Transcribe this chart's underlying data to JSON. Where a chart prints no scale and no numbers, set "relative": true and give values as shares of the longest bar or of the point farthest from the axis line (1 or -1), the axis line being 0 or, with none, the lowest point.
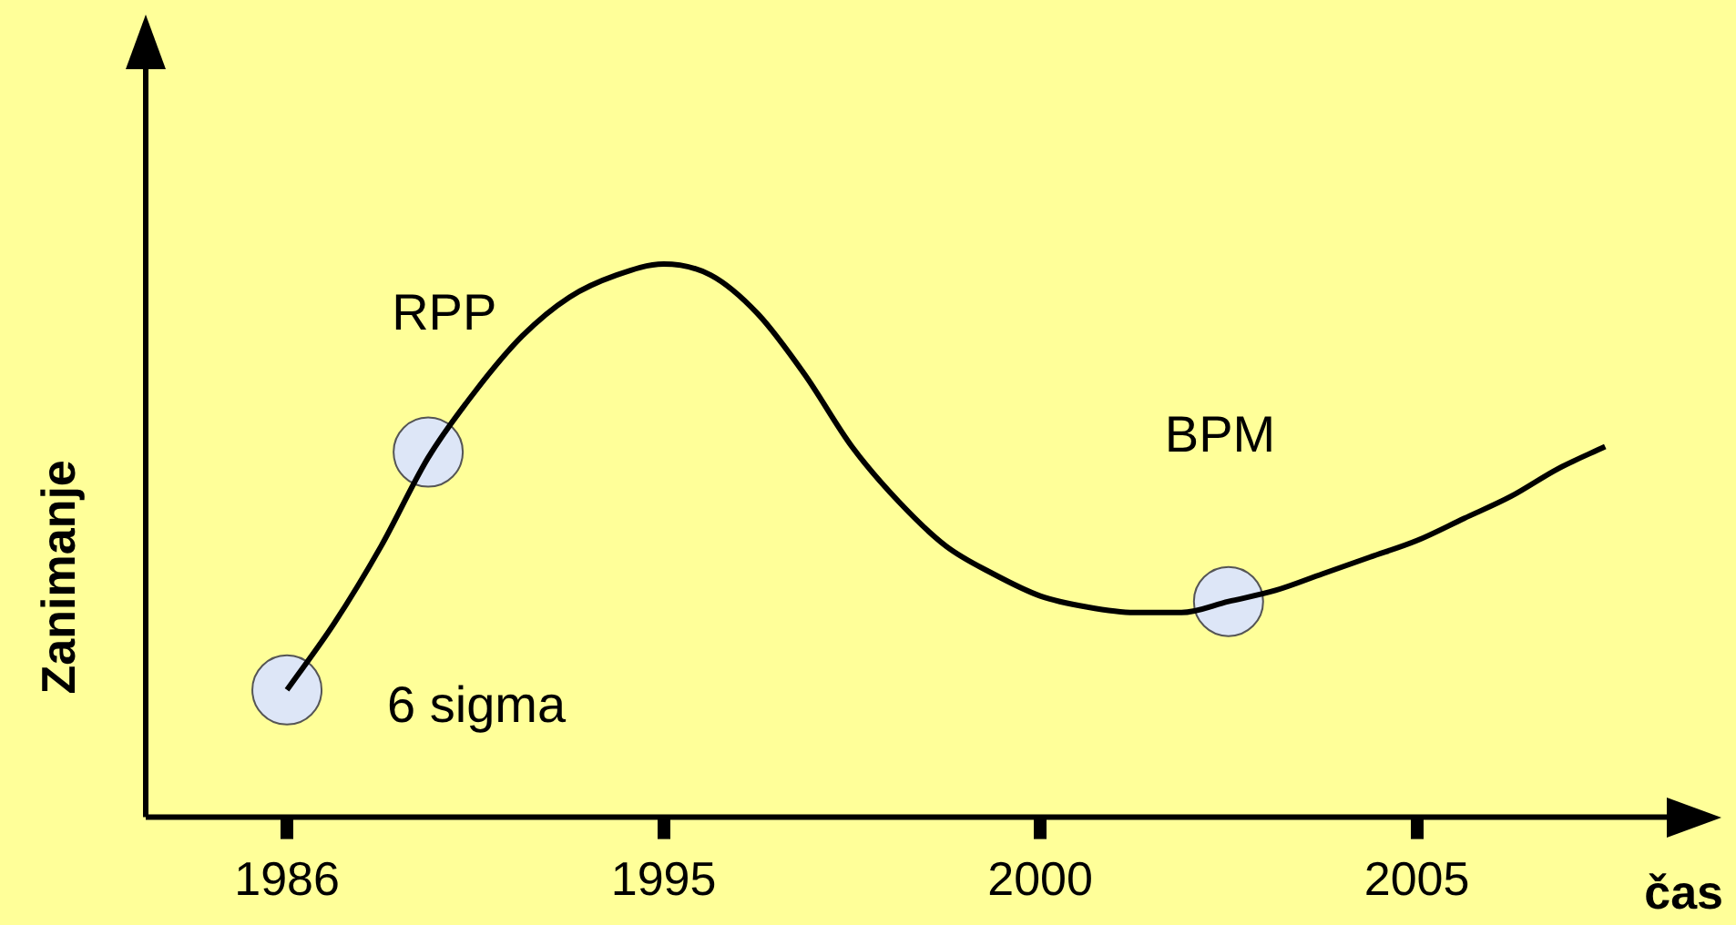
{
  "chart_data": {
    "type": "line",
    "relative": true,
    "xlabel": "čas",
    "ylabel": "Zanimanje",
    "categories": [
      null,
      null,
      null,
      "1986",
      null,
      null,
      null,
      null,
      null,
      null,
      null,
      "1995",
      null,
      null,
      null,
      null,
      null,
      null,
      null,
      "2000",
      null,
      null,
      null,
      null,
      null,
      null,
      null,
      "2005",
      null,
      null,
      null,
      null,
      null
    ],
    "series": [
      {
        "type": "line",
        "color": "#000000",
        "marker": "none",
        "values": [
          null,
          null,
          null,
          0.23,
          0.35,
          0.49,
          0.65,
          0.77,
          0.87,
          0.94,
          0.98,
          1.0,
          0.98,
          0.91,
          0.8,
          0.67,
          0.57,
          0.49,
          0.44,
          0.4,
          0.38,
          0.37,
          0.37,
          0.39,
          0.41,
          0.44,
          0.47,
          0.5,
          0.54,
          0.58,
          0.63,
          0.67,
          null
        ]
      },
      {
        "type": "scatter",
        "color": "#dde6f7",
        "marker": "circle",
        "values": [
          null,
          null,
          null,
          0.23,
          null,
          null,
          0.66,
          null,
          null,
          null,
          null,
          null,
          null,
          null,
          null,
          null,
          null,
          null,
          null,
          null,
          null,
          null,
          null,
          0.39,
          null,
          null,
          null,
          null,
          null,
          null,
          null,
          null,
          null
        ]
      }
    ],
    "annotations": [
      "6 sigma",
      "RPP",
      "BPM"
    ],
    "grid": false,
    "legend": false
  }
}
